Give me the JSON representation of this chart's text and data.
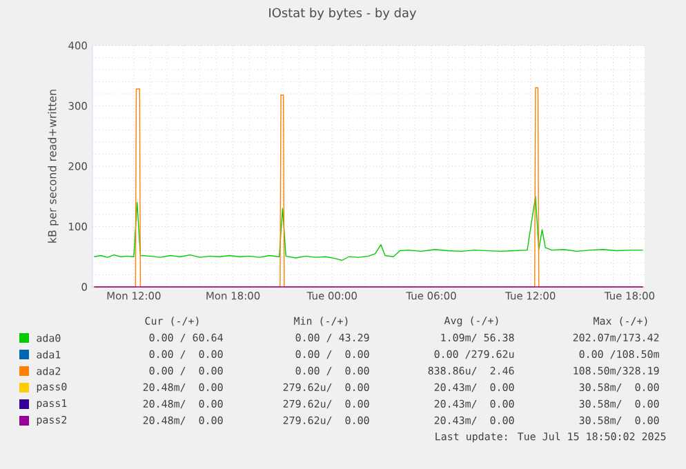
{
  "chart_data": {
    "type": "line",
    "title": "IOstat by bytes - by day",
    "ylabel": "kB per second read+written",
    "xlim": [
      "2025-07-14T09:30",
      "2025-07-15T18:54"
    ],
    "ylim": [
      0,
      400
    ],
    "yticks": [
      0,
      100,
      200,
      300,
      400
    ],
    "xticks": [
      {
        "value": "2025-07-14T12:00",
        "label": "Mon 12:00"
      },
      {
        "value": "2025-07-14T18:00",
        "label": "Mon 18:00"
      },
      {
        "value": "2025-07-15T00:00",
        "label": "Tue 00:00"
      },
      {
        "value": "2025-07-15T06:00",
        "label": "Tue 06:00"
      },
      {
        "value": "2025-07-15T12:00",
        "label": "Tue 12:00"
      },
      {
        "value": "2025-07-15T18:00",
        "label": "Tue 18:00"
      }
    ],
    "grid": true,
    "legend": "bottom",
    "series": [
      {
        "name": "ada0",
        "color": "#00cc00",
        "x": [
          "2025-07-14T09:36",
          "2025-07-14T10:00",
          "2025-07-14T10:24",
          "2025-07-14T10:48",
          "2025-07-14T11:12",
          "2025-07-14T11:36",
          "2025-07-14T12:00",
          "2025-07-14T12:12",
          "2025-07-14T12:24",
          "2025-07-14T13:00",
          "2025-07-14T13:36",
          "2025-07-14T14:12",
          "2025-07-14T14:48",
          "2025-07-14T15:24",
          "2025-07-14T16:00",
          "2025-07-14T16:36",
          "2025-07-14T17:12",
          "2025-07-14T17:48",
          "2025-07-14T18:24",
          "2025-07-14T19:00",
          "2025-07-14T19:36",
          "2025-07-14T20:12",
          "2025-07-14T20:48",
          "2025-07-14T21:00",
          "2025-07-14T21:12",
          "2025-07-14T21:48",
          "2025-07-14T22:24",
          "2025-07-14T23:00",
          "2025-07-14T23:36",
          "2025-07-15T00:12",
          "2025-07-15T00:36",
          "2025-07-15T01:00",
          "2025-07-15T01:36",
          "2025-07-15T02:12",
          "2025-07-15T02:36",
          "2025-07-15T02:57",
          "2025-07-15T03:12",
          "2025-07-15T03:42",
          "2025-07-15T04:06",
          "2025-07-15T04:36",
          "2025-07-15T05:24",
          "2025-07-15T06:12",
          "2025-07-15T07:00",
          "2025-07-15T07:48",
          "2025-07-15T08:36",
          "2025-07-15T09:24",
          "2025-07-15T10:12",
          "2025-07-15T11:00",
          "2025-07-15T11:48",
          "2025-07-15T12:18",
          "2025-07-15T12:30",
          "2025-07-15T12:42",
          "2025-07-15T12:54",
          "2025-07-15T13:18",
          "2025-07-15T14:00",
          "2025-07-15T14:48",
          "2025-07-15T15:36",
          "2025-07-15T16:24",
          "2025-07-15T17:12",
          "2025-07-15T18:00",
          "2025-07-15T18:48"
        ],
        "values": [
          50,
          52,
          49,
          53,
          50,
          51,
          50,
          140,
          52,
          51,
          49,
          52,
          50,
          53,
          49,
          51,
          50,
          52,
          50,
          51,
          49,
          52,
          50,
          130,
          51,
          48,
          51,
          49,
          50,
          47,
          44,
          50,
          49,
          51,
          55,
          70,
          52,
          50,
          60,
          61,
          59,
          62,
          60,
          59,
          61,
          60,
          59,
          60,
          61,
          150,
          62,
          95,
          65,
          61,
          62,
          59,
          61,
          62,
          60,
          61,
          61
        ]
      },
      {
        "name": "ada1",
        "color": "#0066b3"
      },
      {
        "name": "ada2",
        "color": "#ff8000",
        "x": [
          "2025-07-14T09:36",
          "2025-07-14T12:06",
          "2025-07-14T12:09",
          "2025-07-14T12:21",
          "2025-07-14T12:24",
          "2025-07-14T20:51",
          "2025-07-14T20:54",
          "2025-07-14T21:03",
          "2025-07-14T21:06",
          "2025-07-15T12:15",
          "2025-07-15T12:18",
          "2025-07-15T12:27",
          "2025-07-15T12:30",
          "2025-07-15T18:48"
        ],
        "values": [
          0,
          0,
          328,
          328,
          0,
          0,
          318,
          318,
          0,
          0,
          330,
          330,
          0,
          0
        ]
      },
      {
        "name": "pass0",
        "color": "#ffcc00"
      },
      {
        "name": "pass1",
        "color": "#330099"
      },
      {
        "name": "pass2",
        "color": "#990099",
        "x": [
          "2025-07-14T09:36",
          "2025-07-15T18:48"
        ],
        "values": [
          0,
          0
        ]
      }
    ],
    "annotations": [
      "Cur (-/+)",
      "Min (-/+)",
      "Avg (-/+)",
      "Max (-/+)",
      "0.00 / 60.64",
      "0.00 / 43.29",
      "1.09m/ 56.38",
      "202.07m/173.42",
      "0.00 /  0.00",
      "0.00 /  0.00",
      "0.00 /279.62u",
      "0.00 /108.50m",
      "0.00 /  0.00",
      "0.00 /  0.00",
      "838.86u/  2.46",
      "108.50m/328.19",
      "20.48m/  0.00",
      "279.62u/  0.00",
      "20.43m/  0.00",
      "30.58m/  0.00",
      "20.48m/  0.00",
      "279.62u/  0.00",
      "20.43m/  0.00",
      "30.58m/  0.00",
      "20.48m/  0.00",
      "279.62u/  0.00",
      "20.43m/  0.00",
      "30.58m/  0.00",
      "Last update: Tue Jul 15 18:50:02 2025"
    ]
  }
}
